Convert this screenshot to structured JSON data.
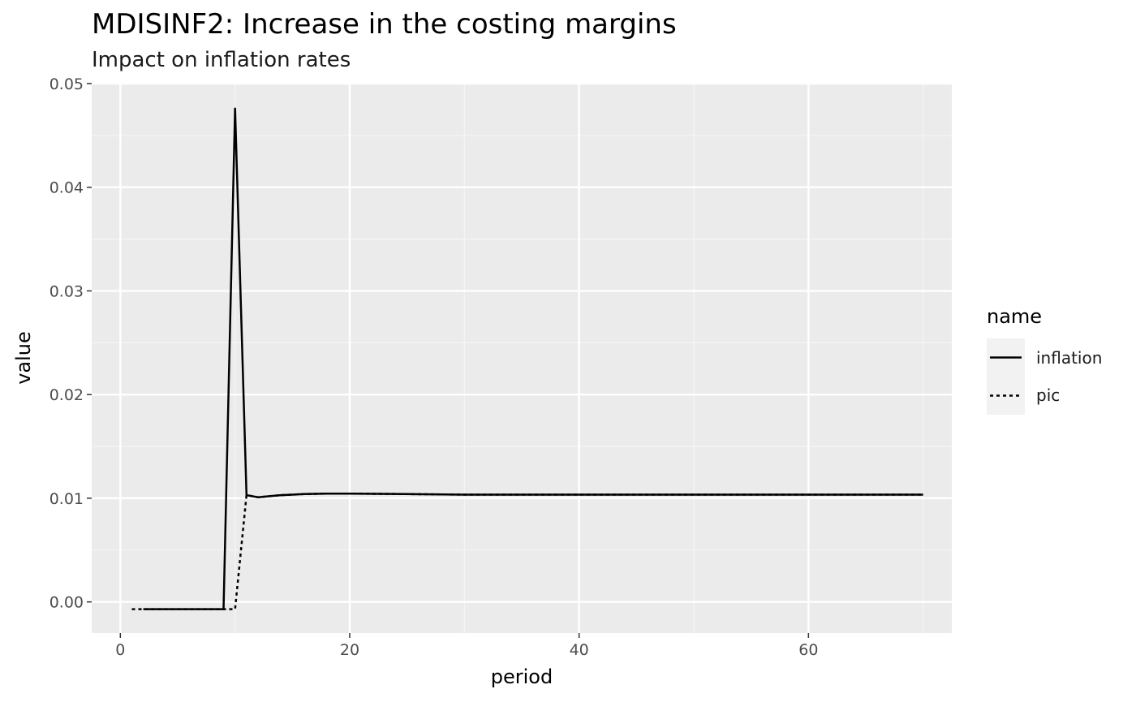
{
  "chart_data": {
    "type": "line",
    "title": "MDISINF2: Increase in the costing margins",
    "subtitle": "Impact on inflation rates",
    "xlabel": "period",
    "ylabel": "value",
    "xlim": [
      -2.5,
      72.5
    ],
    "ylim": [
      -0.003,
      0.05
    ],
    "x_ticks": [
      0,
      20,
      40,
      60
    ],
    "x_tick_labels": [
      "0",
      "20",
      "40",
      "60"
    ],
    "y_ticks": [
      0,
      0.01,
      0.02,
      0.03,
      0.04,
      0.05
    ],
    "y_tick_labels": [
      "0.00",
      "0.01",
      "0.02",
      "0.03",
      "0.04",
      "0.05"
    ],
    "grid": true,
    "legend": {
      "title": "name",
      "position": "right",
      "entries": [
        {
          "label": "inflation",
          "linetype": "solid"
        },
        {
          "label": "pic",
          "linetype": "dotted"
        }
      ]
    },
    "series": [
      {
        "name": "inflation",
        "linetype": "solid",
        "color": "#000000",
        "x": [
          2,
          3,
          4,
          5,
          6,
          7,
          8,
          9,
          10,
          11,
          12,
          13,
          14,
          15,
          16,
          18,
          20,
          25,
          30,
          40,
          50,
          60,
          70
        ],
        "y": [
          -0.0007,
          -0.0007,
          -0.0007,
          -0.0007,
          -0.0007,
          -0.0007,
          -0.0007,
          -0.0007,
          0.0476,
          0.0103,
          0.0101,
          0.0102,
          0.0103,
          0.01035,
          0.0104,
          0.01045,
          0.01045,
          0.0104,
          0.01035,
          0.01035,
          0.01035,
          0.01035,
          0.01035
        ]
      },
      {
        "name": "pic",
        "linetype": "dotted",
        "color": "#000000",
        "x": [
          1,
          2,
          3,
          4,
          5,
          6,
          7,
          8,
          9,
          10,
          11,
          12,
          13,
          14,
          15,
          16,
          18,
          20,
          25,
          30,
          40,
          50,
          60,
          70
        ],
        "y": [
          -0.0007,
          -0.0007,
          -0.0007,
          -0.0007,
          -0.0007,
          -0.0007,
          -0.0007,
          -0.0007,
          -0.0007,
          -0.0007,
          0.0103,
          0.0101,
          0.0102,
          0.0103,
          0.01035,
          0.0104,
          0.01045,
          0.01045,
          0.0104,
          0.01035,
          0.01035,
          0.01035,
          0.01035,
          0.01035
        ]
      }
    ]
  },
  "colors": {
    "panel_background": "#ebebeb",
    "grid_major": "#ffffff",
    "grid_minor": "#f5f5f5",
    "legend_key_background": "#f2f2f2",
    "line": "#000000"
  }
}
